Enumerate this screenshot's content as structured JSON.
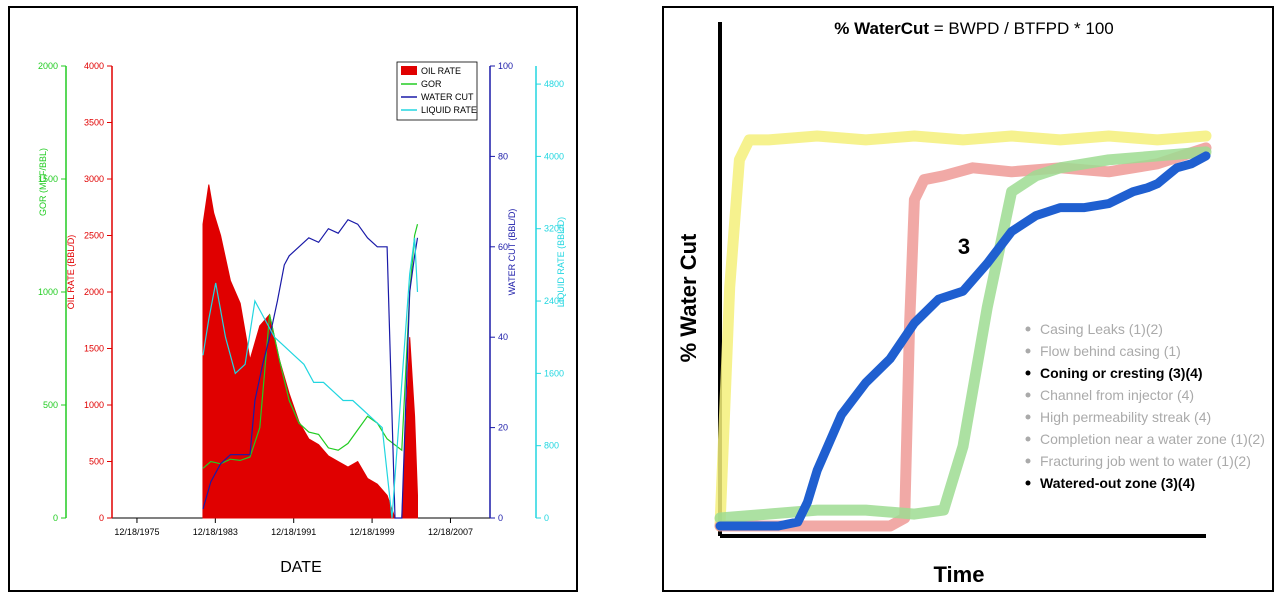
{
  "chart_data": [
    {
      "type": "area",
      "xlabel": "DATE",
      "x_ticks": [
        "12/18/1975",
        "12/18/1983",
        "12/18/1991",
        "12/18/1999",
        "12/18/2007"
      ],
      "xlim": [
        "1973-06-01",
        "2011-12-31"
      ],
      "axes": {
        "gor": {
          "label": "GOR (MCF/BBL)",
          "color": "#22cc22",
          "ticks": [
            0,
            500,
            1000,
            1500,
            2000
          ],
          "ylim": [
            0,
            2000
          ]
        },
        "oil": {
          "label": "OIL RATE (BBL/D)",
          "color": "#e00000",
          "ticks": [
            0,
            500,
            1000,
            1500,
            2000,
            2500,
            3000,
            3500,
            4000
          ],
          "ylim": [
            0,
            4000
          ]
        },
        "watercut": {
          "label": "WATER CUT (BBL/D)",
          "color": "#1a1aa8",
          "ticks": [
            0,
            20,
            40,
            60,
            80,
            100
          ],
          "ylim": [
            0,
            100
          ]
        },
        "liquid": {
          "label": "LIQUID RATE (BBL/D)",
          "color": "#22d6e0",
          "ticks": [
            0,
            800,
            1600,
            2400,
            3200,
            4000,
            4800
          ],
          "ylim": [
            0,
            5000
          ]
        }
      },
      "legend": {
        "placement": "top-right",
        "entries": [
          {
            "name": "OIL RATE",
            "color": "#e00000"
          },
          {
            "name": "GOR",
            "color": "#22cc22"
          },
          {
            "name": "WATER CUT",
            "color": "#1a1aa8"
          },
          {
            "name": "LIQUID RATE",
            "color": "#22d6e0"
          }
        ]
      },
      "series": [
        {
          "name": "OIL RATE",
          "axis": "oil",
          "type": "area",
          "x": [
            1982.7,
            1983.3,
            1983.8,
            1984.5,
            1985.5,
            1986.5,
            1987.5,
            1988.5,
            1989.5,
            1990.5,
            1991.5,
            1992.5,
            1993.5,
            1994.5,
            1995.5,
            1996.5,
            1997.5,
            1998.5,
            1999.5,
            2000.5,
            2001.5,
            2002.3,
            2003.0,
            2003.8,
            2004.3,
            2004.6
          ],
          "y": [
            2600,
            2950,
            2700,
            2500,
            2100,
            1900,
            1400,
            1700,
            1800,
            1400,
            1100,
            850,
            700,
            650,
            550,
            500,
            450,
            500,
            350,
            300,
            200,
            0,
            0,
            1600,
            900,
            200
          ]
        },
        {
          "name": "GOR",
          "axis": "gor",
          "type": "line",
          "x": [
            1982.7,
            1983.5,
            1984.5,
            1985.5,
            1986.5,
            1987.5,
            1988.5,
            1989.5,
            1990.5,
            1991.5,
            1992.5,
            1993.5,
            1994.5,
            1995.5,
            1996.5,
            1997.5,
            1998.5,
            1999.5,
            2000.5,
            2001.5,
            2003.0,
            2003.8,
            2004.3,
            2004.6
          ],
          "y": [
            220,
            250,
            240,
            260,
            255,
            270,
            400,
            900,
            700,
            520,
            420,
            380,
            370,
            310,
            300,
            330,
            390,
            450,
            420,
            350,
            300,
            1000,
            1250,
            1300
          ]
        },
        {
          "name": "WATER CUT",
          "axis": "watercut",
          "type": "line",
          "x": [
            1982.7,
            1983.5,
            1984.5,
            1985.5,
            1986.5,
            1987.5,
            1988.0,
            1988.8,
            1989.5,
            1990.3,
            1991.0,
            1991.5,
            1992.5,
            1993.5,
            1994.5,
            1995.5,
            1996.5,
            1997.5,
            1998.5,
            1999.5,
            2000.5,
            2001.5,
            2002.3,
            2003.0,
            2003.8,
            2004.3,
            2004.6
          ],
          "y": [
            2,
            8,
            12,
            14,
            14,
            14,
            26,
            34,
            40,
            48,
            56,
            58,
            60,
            62,
            61,
            64,
            63,
            66,
            65,
            62,
            60,
            60,
            0,
            0,
            50,
            58,
            62
          ]
        },
        {
          "name": "LIQUID RATE",
          "axis": "liquid",
          "type": "line",
          "x": [
            1982.7,
            1983.3,
            1984.0,
            1985.0,
            1986.0,
            1987.0,
            1988.0,
            1989.0,
            1990.0,
            1991.0,
            1992.0,
            1993.0,
            1994.0,
            1995.0,
            1996.0,
            1997.0,
            1998.0,
            1999.0,
            2000.0,
            2001.0,
            2002.0,
            2003.8,
            2004.3,
            2004.6
          ],
          "y": [
            1800,
            2200,
            2600,
            2000,
            1600,
            1700,
            2400,
            2200,
            2000,
            1900,
            1800,
            1700,
            1500,
            1500,
            1400,
            1300,
            1300,
            1200,
            1100,
            1000,
            0,
            2700,
            3100,
            2500
          ]
        }
      ]
    },
    {
      "type": "line",
      "title_bold": "% WaterCut",
      "title_rest": " = BWPD / BTFPD * 100",
      "xlabel": "Time",
      "ylabel": "% Water Cut",
      "xlim": [
        0,
        100
      ],
      "ylim": [
        0,
        100
      ],
      "annotation": "3",
      "series": [
        {
          "color": "#f5f07a",
          "x": [
            0,
            2,
            4,
            6,
            10,
            20,
            30,
            40,
            50,
            60,
            70,
            80,
            90,
            100
          ],
          "y": [
            0,
            60,
            92,
            97,
            97,
            98,
            97,
            98,
            97,
            98,
            97,
            98,
            97,
            98
          ]
        },
        {
          "color": "#ef9a96",
          "x": [
            0,
            20,
            35,
            38,
            39,
            40,
            42,
            46,
            52,
            60,
            70,
            80,
            90,
            100
          ],
          "y": [
            0,
            0,
            0,
            2,
            50,
            82,
            87,
            88,
            90,
            89,
            90,
            89,
            91,
            95
          ]
        },
        {
          "color": "#9ddc92",
          "x": [
            0,
            20,
            30,
            40,
            46,
            50,
            55,
            60,
            65,
            70,
            75,
            80,
            90,
            100
          ],
          "y": [
            2,
            4,
            4,
            3,
            4,
            20,
            55,
            84,
            88,
            90,
            91,
            92,
            93,
            94
          ]
        },
        {
          "color": "#1f5fd0",
          "x": [
            0,
            8,
            12,
            16,
            18,
            20,
            25,
            30,
            35,
            40,
            45,
            50,
            55,
            60,
            65,
            70,
            75,
            80,
            85,
            88,
            90,
            92,
            94,
            97,
            100
          ],
          "y": [
            0,
            0,
            0,
            1,
            6,
            14,
            28,
            36,
            42,
            51,
            57,
            59,
            66,
            74,
            78,
            80,
            80,
            81,
            84,
            85,
            86,
            88,
            90,
            91,
            93
          ]
        }
      ],
      "bullets": [
        {
          "text": "Casing Leaks (1)(2)",
          "color": "#aaaaaa",
          "bold": false
        },
        {
          "text": "Flow behind casing (1)",
          "color": "#aaaaaa",
          "bold": false
        },
        {
          "text": "Coning or cresting (3)(4)",
          "color": "#000000",
          "bold": true
        },
        {
          "text": "Channel from injector (4)",
          "color": "#aaaaaa",
          "bold": false
        },
        {
          "text": "High permeability streak (4)",
          "color": "#aaaaaa",
          "bold": false
        },
        {
          "text": "Completion near a water zone (1)(2)",
          "color": "#aaaaaa",
          "bold": false
        },
        {
          "text": "Fracturing job went to water (1)(2)",
          "color": "#aaaaaa",
          "bold": false
        },
        {
          "text": "Watered-out zone (3)(4)",
          "color": "#000000",
          "bold": true
        }
      ]
    }
  ]
}
